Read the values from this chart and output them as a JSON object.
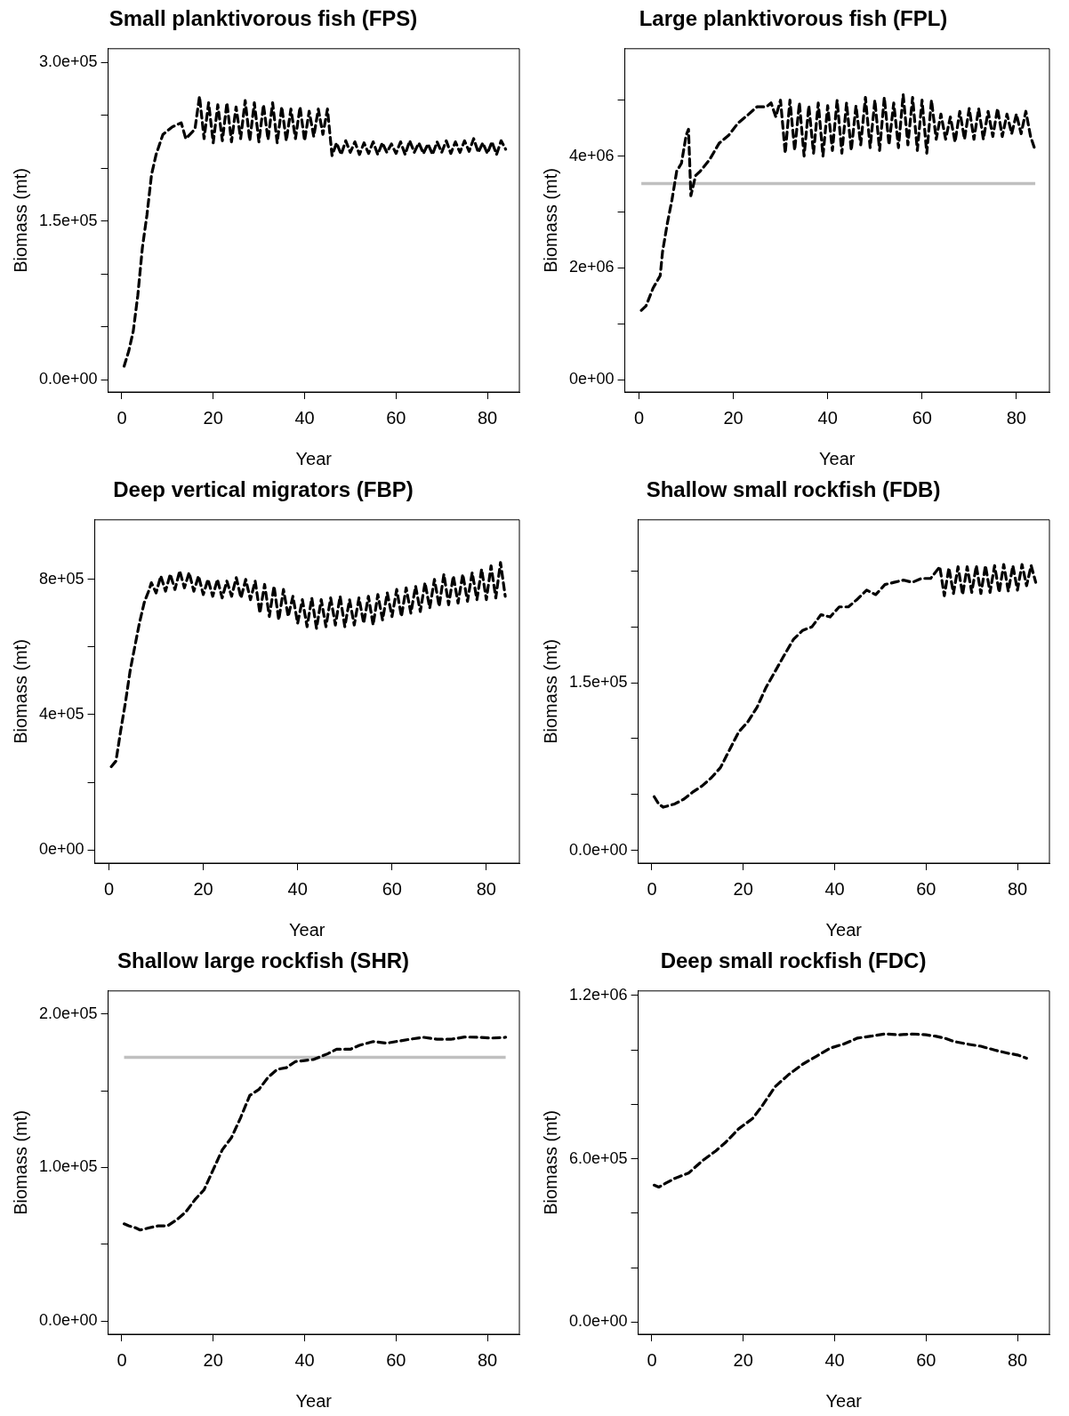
{
  "chart_data": [
    {
      "type": "line",
      "title": "Small planktivorous fish (FPS)",
      "xlabel": "Year",
      "ylabel": "Biomass (mt)",
      "line_style": "dashed",
      "grid": false,
      "legend": false,
      "xlim": [
        -3,
        87
      ],
      "xticks": [
        0,
        20,
        40,
        60,
        80
      ],
      "ylim": [
        -11400,
        313000
      ],
      "yticks": [
        {
          "value": 0,
          "label": "0.0e+00"
        },
        {
          "value": 50000,
          "label": null
        },
        {
          "value": 100000,
          "label": null
        },
        {
          "value": 150000,
          "label": "1.5e+05"
        },
        {
          "value": 200000,
          "label": null
        },
        {
          "value": 250000,
          "label": null
        },
        {
          "value": 300000,
          "label": "3.0e+05"
        }
      ],
      "series": [
        {
          "color": "#000000",
          "x": [
            0.5,
            1.5,
            2.5,
            3.5,
            4.5,
            5.5,
            6.5,
            7.5,
            9,
            11,
            13,
            14,
            16,
            17,
            18,
            19,
            20,
            21,
            22,
            23,
            24,
            25,
            26,
            27,
            28,
            29,
            30,
            31,
            32,
            33,
            34,
            35,
            36,
            37,
            38,
            39,
            40,
            41,
            42,
            43,
            44,
            45,
            46,
            47,
            48,
            49,
            50,
            51,
            52,
            53,
            54,
            55,
            56,
            57,
            58,
            59,
            60,
            61,
            62,
            63,
            64,
            65,
            66,
            67,
            68,
            69,
            70,
            71,
            72,
            73,
            74,
            75,
            76,
            77,
            78,
            79,
            80,
            81,
            82,
            83,
            84
          ],
          "values": [
            13000,
            27000,
            46000,
            80000,
            125000,
            156000,
            194000,
            213000,
            232000,
            239000,
            243000,
            228000,
            237000,
            268000,
            228000,
            262000,
            224000,
            260000,
            226000,
            262000,
            225000,
            258000,
            228000,
            264000,
            226000,
            262000,
            225000,
            260000,
            227000,
            262000,
            224000,
            258000,
            226000,
            256000,
            228000,
            258000,
            226000,
            254000,
            230000,
            256000,
            232000,
            256000,
            212000,
            224000,
            213000,
            226000,
            215000,
            225000,
            213000,
            224000,
            214000,
            225000,
            213000,
            224000,
            215000,
            223000,
            214000,
            225000,
            213000,
            226000,
            215000,
            224000,
            214000,
            223000,
            213000,
            225000,
            215000,
            226000,
            214000,
            225000,
            215000,
            226000,
            216000,
            228000,
            215000,
            224000,
            214000,
            225000,
            213000,
            226000,
            218000
          ]
        }
      ]
    },
    {
      "type": "line",
      "title": "Large planktivorous fish (FPL)",
      "xlabel": "Year",
      "ylabel": "Biomass (mt)",
      "line_style": "dashed",
      "grid": false,
      "legend": false,
      "xlim": [
        -3,
        87
      ],
      "xticks": [
        0,
        20,
        40,
        60,
        80
      ],
      "ylim": [
        -220000,
        5920000
      ],
      "yticks": [
        {
          "value": 0,
          "label": "0e+00"
        },
        {
          "value": 1000000,
          "label": null
        },
        {
          "value": 2000000,
          "label": "2e+06"
        },
        {
          "value": 3000000,
          "label": null
        },
        {
          "value": 4000000,
          "label": "4e+06"
        },
        {
          "value": 5000000,
          "label": null
        }
      ],
      "ref_lines": [
        {
          "axis": "y",
          "value": 3510000,
          "color": "#c0c0c0"
        }
      ],
      "series": [
        {
          "color": "#000000",
          "x": [
            0.5,
            1.5,
            3,
            4.5,
            5,
            6,
            7,
            8,
            9,
            10,
            10.5,
            11,
            12,
            13,
            15,
            17,
            19,
            21,
            23,
            25,
            27,
            28,
            29,
            30,
            31,
            32,
            33,
            34,
            35,
            36,
            37,
            38,
            39,
            40,
            41,
            42,
            43,
            44,
            45,
            46,
            47,
            48,
            49,
            50,
            51,
            52,
            53,
            54,
            55,
            56,
            57,
            58,
            59,
            60,
            61,
            62,
            63,
            64,
            65,
            66,
            67,
            68,
            69,
            70,
            71,
            72,
            73,
            74,
            75,
            76,
            77,
            78,
            79,
            80,
            81,
            82,
            83,
            84
          ],
          "values": [
            1240000,
            1320000,
            1640000,
            1860000,
            2290000,
            2790000,
            3220000,
            3730000,
            3870000,
            4370000,
            4480000,
            3290000,
            3650000,
            3730000,
            3940000,
            4230000,
            4370000,
            4590000,
            4730000,
            4880000,
            4880000,
            4950000,
            4700000,
            5000000,
            4050000,
            5000000,
            4100000,
            4950000,
            4000000,
            4900000,
            4050000,
            4950000,
            4000000,
            4900000,
            4100000,
            5000000,
            4050000,
            4950000,
            4100000,
            4900000,
            4200000,
            5050000,
            4150000,
            5000000,
            4100000,
            5050000,
            4200000,
            4950000,
            4150000,
            5100000,
            4200000,
            5050000,
            4100000,
            5000000,
            4050000,
            5000000,
            4300000,
            4750000,
            4300000,
            4700000,
            4250000,
            4800000,
            4300000,
            4850000,
            4300000,
            4850000,
            4300000,
            4800000,
            4350000,
            4850000,
            4350000,
            4750000,
            4400000,
            4750000,
            4400000,
            4800000,
            4350000,
            4100000
          ]
        }
      ]
    },
    {
      "type": "line",
      "title": "Deep vertical migrators (FBP)",
      "xlabel": "Year",
      "ylabel": "Biomass (mt)",
      "line_style": "dashed",
      "grid": false,
      "legend": false,
      "xlim": [
        -3,
        87
      ],
      "xticks": [
        0,
        20,
        40,
        60,
        80
      ],
      "ylim": [
        -39000,
        976000
      ],
      "yticks": [
        {
          "value": 0,
          "label": "0e+00"
        },
        {
          "value": 200000,
          "label": null
        },
        {
          "value": 400000,
          "label": "4e+05"
        },
        {
          "value": 600000,
          "label": null
        },
        {
          "value": 800000,
          "label": "8e+05"
        }
      ],
      "series": [
        {
          "color": "#000000",
          "x": [
            0.5,
            1.5,
            2.5,
            3.5,
            4.5,
            5.5,
            6.5,
            7.5,
            8.5,
            9,
            10,
            11,
            12,
            13,
            14,
            15,
            16,
            17,
            18,
            19,
            20,
            21,
            22,
            23,
            24,
            25,
            26,
            27,
            28,
            29,
            30,
            31,
            32,
            33,
            34,
            35,
            36,
            37,
            38,
            39,
            40,
            41,
            42,
            43,
            44,
            45,
            46,
            47,
            48,
            49,
            50,
            51,
            52,
            53,
            54,
            55,
            56,
            57,
            58,
            59,
            60,
            61,
            62,
            63,
            64,
            65,
            66,
            67,
            68,
            69,
            70,
            71,
            72,
            73,
            74,
            75,
            76,
            77,
            78,
            79,
            80,
            81,
            82,
            83,
            84
          ],
          "values": [
            246000,
            263000,
            353000,
            436000,
            530000,
            602000,
            673000,
            732000,
            768000,
            790000,
            760000,
            810000,
            765000,
            815000,
            770000,
            825000,
            775000,
            820000,
            765000,
            810000,
            755000,
            800000,
            750000,
            800000,
            745000,
            795000,
            750000,
            805000,
            745000,
            800000,
            740000,
            795000,
            700000,
            785000,
            690000,
            780000,
            680000,
            770000,
            690000,
            750000,
            670000,
            740000,
            660000,
            745000,
            655000,
            740000,
            660000,
            745000,
            665000,
            750000,
            660000,
            740000,
            665000,
            745000,
            670000,
            750000,
            665000,
            755000,
            680000,
            760000,
            690000,
            770000,
            690000,
            775000,
            700000,
            780000,
            705000,
            790000,
            715000,
            800000,
            720000,
            815000,
            725000,
            810000,
            730000,
            815000,
            735000,
            820000,
            740000,
            830000,
            740000,
            840000,
            745000,
            850000,
            750000
          ]
        }
      ]
    },
    {
      "type": "line",
      "title": "Shallow small rockfish (FDB)",
      "xlabel": "Year",
      "ylabel": "Biomass (mt)",
      "line_style": "dashed",
      "grid": false,
      "legend": false,
      "xlim": [
        -3,
        87
      ],
      "xticks": [
        0,
        20,
        40,
        60,
        80
      ],
      "ylim": [
        -11500,
        296000
      ],
      "yticks": [
        {
          "value": 0,
          "label": "0.0e+00"
        },
        {
          "value": 50000,
          "label": null
        },
        {
          "value": 100000,
          "label": null
        },
        {
          "value": 150000,
          "label": "1.5e+05"
        },
        {
          "value": 200000,
          "label": null
        },
        {
          "value": 250000,
          "label": null
        }
      ],
      "series": [
        {
          "color": "#000000",
          "x": [
            0.5,
            1.5,
            2.5,
            5,
            7,
            9,
            11,
            13,
            15,
            17,
            19,
            21,
            23,
            25,
            27,
            29,
            31,
            33,
            35,
            37,
            39,
            41,
            43,
            45,
            47,
            49,
            51,
            53,
            55,
            57,
            59,
            61,
            63,
            64,
            65,
            66,
            67,
            68,
            69,
            70,
            71,
            72,
            73,
            74,
            75,
            76,
            77,
            78,
            79,
            80,
            81,
            82,
            83,
            84
          ],
          "values": [
            48000,
            41500,
            38600,
            41500,
            45800,
            52300,
            57700,
            64900,
            74000,
            90000,
            106000,
            115000,
            128000,
            146000,
            160500,
            175000,
            189000,
            197000,
            200000,
            211000,
            209000,
            218000,
            218000,
            225000,
            233000,
            229000,
            238000,
            240000,
            242000,
            240000,
            243500,
            243500,
            254000,
            228000,
            253000,
            230000,
            254000,
            229000,
            254000,
            231000,
            255000,
            230000,
            255000,
            231000,
            255000,
            231000,
            256000,
            232000,
            255000,
            233000,
            256000,
            237000,
            255000,
            240000
          ]
        }
      ]
    },
    {
      "type": "line",
      "title": "Shallow large rockfish (SHR)",
      "xlabel": "Year",
      "ylabel": "Biomass (mt)",
      "line_style": "dashed",
      "grid": false,
      "legend": false,
      "xlim": [
        -3,
        87
      ],
      "xticks": [
        0,
        20,
        40,
        60,
        80
      ],
      "ylim": [
        -8600,
        215000
      ],
      "yticks": [
        {
          "value": 0,
          "label": "0.0e+00"
        },
        {
          "value": 50000,
          "label": null
        },
        {
          "value": 100000,
          "label": "1.0e+05"
        },
        {
          "value": 150000,
          "label": null
        },
        {
          "value": 200000,
          "label": "2.0e+05"
        }
      ],
      "ref_lines": [
        {
          "axis": "y",
          "value": 171800,
          "color": "#c0c0c0"
        }
      ],
      "series": [
        {
          "color": "#000000",
          "x": [
            0.5,
            1.5,
            3,
            4,
            6,
            8,
            10,
            12,
            14,
            16,
            18,
            20,
            22,
            24,
            26,
            28,
            30,
            32,
            34,
            36,
            38,
            40,
            42,
            45,
            47,
            50,
            52,
            55,
            58,
            60,
            63,
            66,
            69,
            72,
            75,
            78,
            81,
            84
          ],
          "values": [
            63300,
            62000,
            60700,
            59300,
            60700,
            62000,
            62000,
            65900,
            71000,
            79000,
            85500,
            98600,
            111600,
            119500,
            132500,
            146900,
            150800,
            158700,
            163900,
            165000,
            169000,
            169700,
            170400,
            174000,
            177000,
            177000,
            179600,
            182000,
            181000,
            182000,
            183500,
            184800,
            183500,
            183500,
            185000,
            184800,
            184300,
            184800
          ]
        }
      ]
    },
    {
      "type": "line",
      "title": "Deep small rockfish (FDC)",
      "xlabel": "Year",
      "ylabel": "Biomass (mt)",
      "line_style": "dashed",
      "grid": false,
      "legend": false,
      "xlim": [
        -3,
        87
      ],
      "xticks": [
        0,
        20,
        40,
        60,
        80
      ],
      "ylim": [
        -44000,
        1216000
      ],
      "yticks": [
        {
          "value": 0,
          "label": "0.0e+00"
        },
        {
          "value": 200000,
          "label": null
        },
        {
          "value": 400000,
          "label": null
        },
        {
          "value": 600000,
          "label": "6.0e+05"
        },
        {
          "value": 800000,
          "label": null
        },
        {
          "value": 1000000,
          "label": null
        },
        {
          "value": 1200000,
          "label": "1.2e+06"
        }
      ],
      "series": [
        {
          "color": "#000000",
          "x": [
            0.5,
            1.5,
            3,
            5,
            8,
            11,
            14,
            16,
            19,
            22,
            24,
            27,
            30,
            33,
            36,
            39,
            42,
            45,
            48,
            51,
            54,
            57,
            60,
            62,
            64,
            66,
            69,
            72,
            75,
            78,
            80,
            82
          ],
          "values": [
            503000,
            496000,
            510000,
            528000,
            547000,
            592000,
            629000,
            658000,
            710000,
            747000,
            791000,
            865000,
            910000,
            947000,
            976000,
            1006000,
            1021000,
            1043000,
            1050000,
            1058000,
            1055000,
            1058000,
            1055000,
            1050000,
            1043000,
            1031000,
            1021000,
            1013000,
            999000,
            987000,
            981000,
            969000
          ]
        }
      ]
    }
  ]
}
